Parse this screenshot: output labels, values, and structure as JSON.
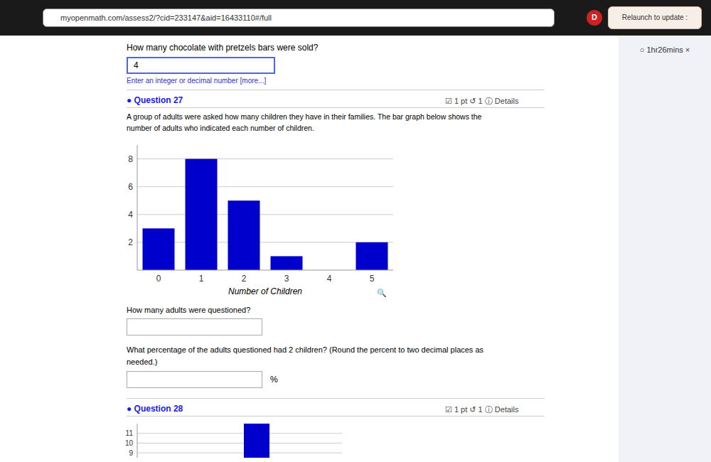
{
  "chart_data": [
    {
      "type": "bar",
      "categories": [
        0,
        1,
        2,
        3,
        4,
        5
      ],
      "values": [
        3,
        8,
        5,
        1,
        0,
        2
      ],
      "color": "#0000CC",
      "x_label": "Number of Children",
      "ylim": [
        0,
        9
      ],
      "yticks": [
        2,
        4,
        6,
        8
      ],
      "grid": true
    },
    {
      "type": "bar",
      "categories": [
        null,
        null,
        null,
        null,
        null,
        null
      ],
      "values": [
        null,
        null,
        null,
        12,
        null,
        null
      ],
      "color": "#0000CC",
      "ylim": [
        8.5,
        12
      ],
      "yticks": [
        9,
        10,
        11
      ],
      "grid": true,
      "tick_labels": "y"
    }
  ],
  "page": {
    "url": "myopenmath.com/assess2/?cid=233147&aid=16433110#/full",
    "relaunch_text": "Relaunch to update  :",
    "avatar_letter": "D",
    "timer_text": "○ 1hr26mins ×",
    "q_before_text": "How many chocolate with pretzels bars were sold?",
    "q_before_answer": "4",
    "q_before_hint": "Enter an integer or decimal number [more...]",
    "q27_label": "● Question 27",
    "q27_pts": "☑ 1 pt  ↺ 1  ⓘ  Details",
    "q27_text1": "A group of adults were asked how many children they have in their families. The bar graph below shows the",
    "q27_text2": "number of adults who indicated each number of children.",
    "magnifier": "🔍",
    "q27_q1": "How many adults were questioned?",
    "q27_q2": "What percentage of the adults questioned had 2 children? (Round the percent to two decimal places as",
    "q27_q2b": "needed.)",
    "percent_sign": "%",
    "q28_label": "● Question 28",
    "q28_pts": "☑ 1 pt  ↺ 1  ⓘ  Details",
    "page_bg": "#f0f2f8",
    "content_bg": "#ffffff",
    "nav_bg": "#1a1a1a",
    "text_color": "#000000",
    "hint_color": "#3333cc",
    "blue_label_color": "#1a1aee",
    "separator_color": "#cccccc",
    "relaunch_color": "#f8eee8"
  }
}
